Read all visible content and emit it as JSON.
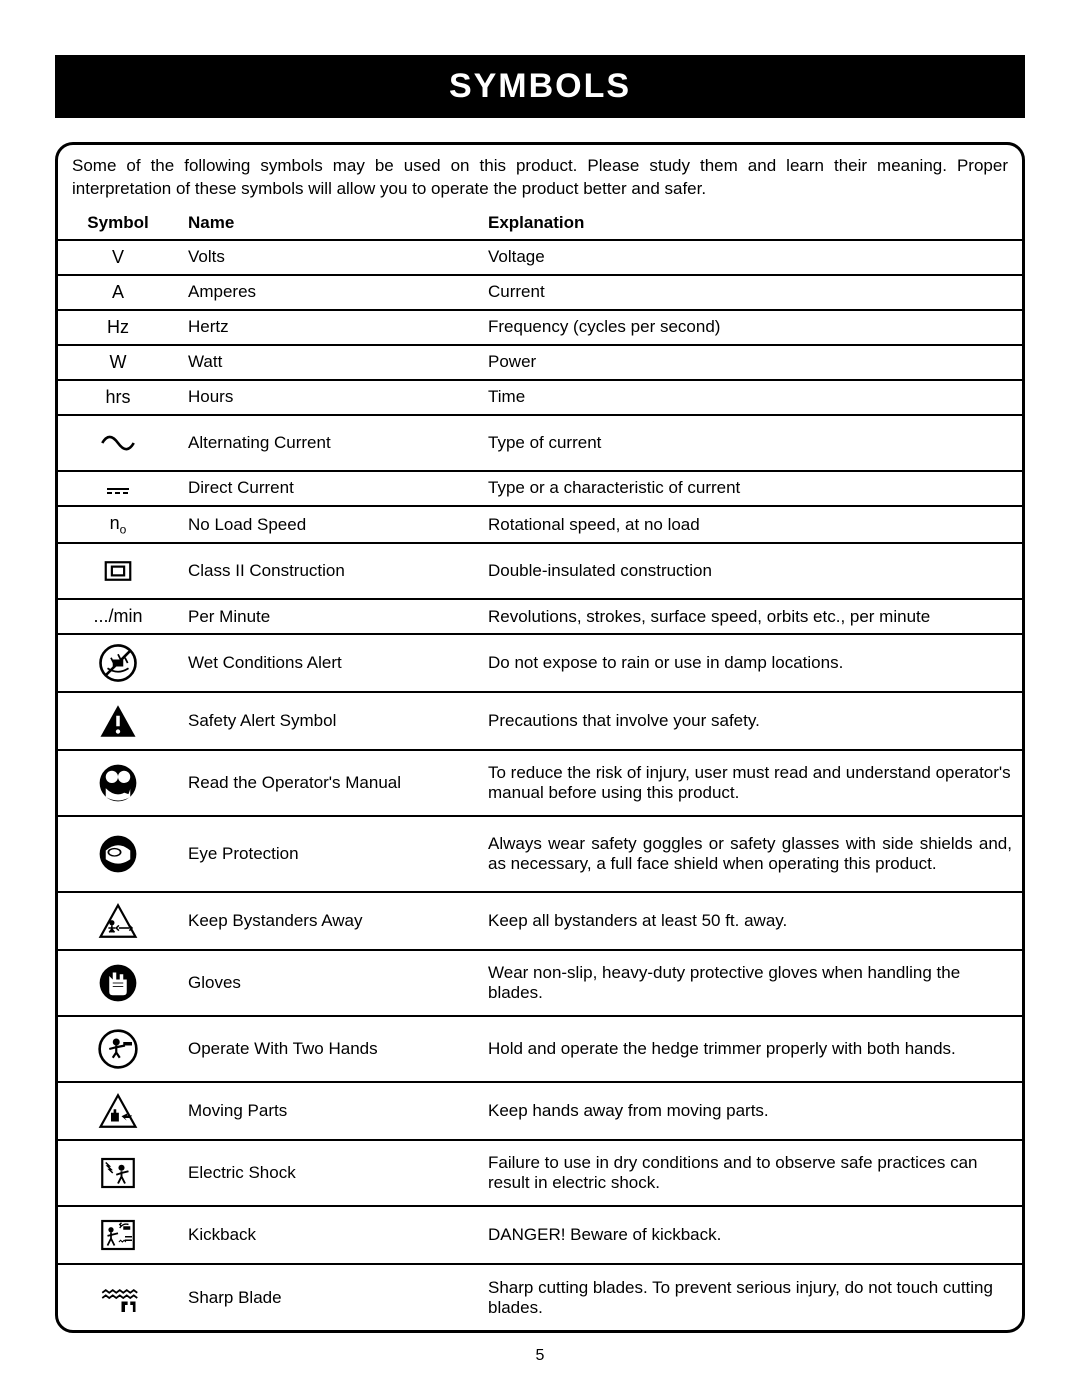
{
  "page": {
    "title": "SYMBOLS",
    "intro": "Some of the following symbols may be used on this product. Please study them and learn their meaning. Proper interpretation of these symbols will allow you to operate the product better and safer.",
    "page_number": "5",
    "headers": {
      "symbol": "Symbol",
      "name": "Name",
      "explanation": "Explanation"
    },
    "colors": {
      "title_bg": "#000000",
      "title_fg": "#ffffff",
      "border": "#000000",
      "text": "#000000"
    },
    "rows": [
      {
        "symbol_text": "V",
        "icon": "",
        "name": "Volts",
        "explanation": "Voltage",
        "row_class": ""
      },
      {
        "symbol_text": "A",
        "icon": "",
        "name": "Amperes",
        "explanation": "Current",
        "row_class": ""
      },
      {
        "symbol_text": "Hz",
        "icon": "",
        "name": "Hertz",
        "explanation": "Frequency (cycles per second)",
        "row_class": ""
      },
      {
        "symbol_text": "W",
        "icon": "",
        "name": "Watt",
        "explanation": "Power",
        "row_class": ""
      },
      {
        "symbol_text": "hrs",
        "icon": "",
        "name": "Hours",
        "explanation": "Time",
        "row_class": ""
      },
      {
        "symbol_text": "",
        "icon": "ac",
        "name": "Alternating Current",
        "explanation": "Type of current",
        "row_class": ""
      },
      {
        "symbol_text": "",
        "icon": "dc",
        "name": "Direct Current",
        "explanation": "Type or a characteristic of current",
        "row_class": ""
      },
      {
        "symbol_text": "",
        "icon": "no",
        "name": "No Load Speed",
        "explanation": "Rotational speed, at no load",
        "row_class": ""
      },
      {
        "symbol_text": "",
        "icon": "class2",
        "name": "Class II Construction",
        "explanation": "Double-insulated construction",
        "row_class": ""
      },
      {
        "symbol_text": ".../min",
        "icon": "",
        "name": "Per Minute",
        "explanation": "Revolutions, strokes, surface speed, orbits etc., per minute",
        "row_class": ""
      },
      {
        "symbol_text": "",
        "icon": "wet",
        "name": "Wet Conditions Alert",
        "explanation": "Do not expose to rain or use in damp locations.",
        "row_class": "tall"
      },
      {
        "symbol_text": "",
        "icon": "alert",
        "name": "Safety Alert Symbol",
        "explanation": "Precautions that involve your safety.",
        "row_class": "tall"
      },
      {
        "symbol_text": "",
        "icon": "manual",
        "name": "Read the Operator's Manual",
        "explanation": "To reduce the risk of injury, user must read and understand operator's manual before using this product.",
        "row_class": "taller"
      },
      {
        "symbol_text": "",
        "icon": "eye",
        "name": "Eye Protection",
        "explanation": "Always wear safety goggles or safety glasses with side shields and, as necessary, a full face shield when operating this product.",
        "row_class": "tall3"
      },
      {
        "symbol_text": "",
        "icon": "bystander",
        "name": "Keep Bystanders Away",
        "explanation": "Keep all bystanders at least 50 ft. away.",
        "row_class": "tall"
      },
      {
        "symbol_text": "",
        "icon": "gloves",
        "name": "Gloves",
        "explanation": "Wear non-slip, heavy-duty protective gloves when handling the blades.",
        "row_class": "taller"
      },
      {
        "symbol_text": "",
        "icon": "twohands",
        "name": "Operate With Two Hands",
        "explanation": "Hold and operate the hedge trimmer properly with both hands.",
        "row_class": "taller"
      },
      {
        "symbol_text": "",
        "icon": "moving",
        "name": "Moving Parts",
        "explanation": "Keep hands away from moving parts.",
        "row_class": "tall"
      },
      {
        "symbol_text": "",
        "icon": "shock",
        "name": "Electric Shock",
        "explanation": "Failure to use in dry conditions and to observe safe practices can result in electric shock.",
        "row_class": "taller"
      },
      {
        "symbol_text": "",
        "icon": "kickback",
        "name": "Kickback",
        "explanation": "DANGER! Beware of kickback.",
        "row_class": "tall"
      },
      {
        "symbol_text": "",
        "icon": "sharp",
        "name": "Sharp Blade",
        "explanation": "Sharp cutting blades. To prevent serious injury, do not touch cutting blades.",
        "row_class": "taller"
      }
    ]
  }
}
